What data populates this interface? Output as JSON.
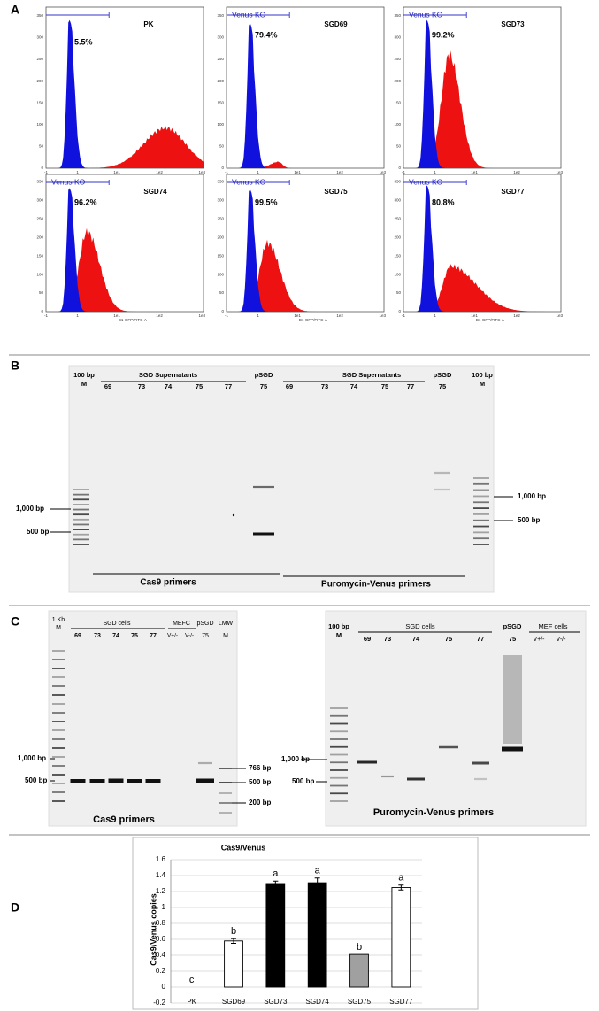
{
  "panel_labels": [
    "A",
    "B",
    "C",
    "D"
  ],
  "flow": {
    "yticks": [
      "0",
      "50",
      "100",
      "150",
      "200",
      "250",
      "300",
      "350"
    ],
    "xticks": [
      "-1",
      "1",
      "1e1",
      "1e2",
      "1e3"
    ],
    "x_label": "B1-GFP/FITC-A",
    "plots": [
      {
        "title": "PK",
        "percent": "5.5%"
      },
      {
        "title": "SGD69",
        "gate": "Venus KO",
        "percent": "79.4%"
      },
      {
        "title": "SGD73",
        "gate": "Venus KO",
        "percent": "99.2%"
      },
      {
        "title": "SGD74",
        "gate": "Venus KO",
        "percent": "96.2%"
      },
      {
        "title": "SGD75",
        "gate": "Venus KO",
        "percent": "99.5%"
      },
      {
        "title": "SGD77",
        "gate": "Venus KO",
        "percent": "80.8%"
      }
    ]
  },
  "gel_b": {
    "ladder_left": [
      "100 bp",
      "M"
    ],
    "group_left": "SGD  Supernatants",
    "lanes_left": [
      "69",
      "73",
      "74",
      "75",
      "77"
    ],
    "psgd_left": [
      "pSGD",
      "75"
    ],
    "group_right": "SGD Supernatants",
    "lanes_right": [
      "69",
      "73",
      "74",
      "75",
      "77"
    ],
    "psgd_right": [
      "pSGD",
      "75"
    ],
    "ladder_right": [
      "100 bp",
      "M"
    ],
    "markers_left": [
      "1,000 bp",
      "500 bp"
    ],
    "markers_right": [
      "1,000 bp",
      "500 bp"
    ],
    "primers": [
      "Cas9 primers",
      "Puromycin-Venus primers"
    ]
  },
  "gel_c_left": {
    "ladder": [
      "1 Kb",
      "M"
    ],
    "group": "SGD cells",
    "lanes": [
      "69",
      "73",
      "74",
      "75",
      "77"
    ],
    "mef_group": "MEFC",
    "mef_lanes": [
      "V+/-",
      "V-/-"
    ],
    "psgd": [
      "pSGD",
      "75"
    ],
    "lmw": [
      "LMW",
      "M"
    ],
    "markers_left": [
      "1,000 bp",
      "500 bp"
    ],
    "markers_right": [
      "766 bp",
      "500 bp",
      "200 bp"
    ],
    "primers": "Cas9 primers"
  },
  "gel_c_right": {
    "ladder": [
      "100 bp",
      "M"
    ],
    "group": "SGD cells",
    "lanes": [
      "69",
      "73",
      "74",
      "75",
      "77"
    ],
    "psgd": [
      "pSGD",
      "75"
    ],
    "mef_group": "MEF cells",
    "mef_lanes": [
      "V+/-",
      "V-/-"
    ],
    "markers_left": [
      "1,000 bp",
      "500 bp"
    ],
    "primers": "Puromycin-Venus primers"
  },
  "chart_data": {
    "type": "bar",
    "title": "Cas9/Venus",
    "y_label": "Cas9/Venus copies",
    "categories": [
      "PK",
      "SGD69",
      "SGD73",
      "SGD74",
      "SGD75",
      "SGD77"
    ],
    "values": [
      0,
      0.58,
      1.3,
      1.31,
      0.41,
      1.25
    ],
    "errors": [
      null,
      0.03,
      0.03,
      0.06,
      null,
      0.03
    ],
    "colors": [
      "#ffffff",
      "#ffffff",
      "#000000",
      "#000000",
      "#a0a0a0",
      "#ffffff"
    ],
    "annotations": [
      "c",
      "b",
      "a",
      "a",
      "b",
      "a"
    ],
    "ylim": [
      -0.2,
      1.6
    ],
    "yticks": [
      -0.2,
      0,
      0.2,
      0.4,
      0.6,
      0.8,
      1,
      1.2,
      1.4,
      1.6
    ],
    "grid": true
  }
}
